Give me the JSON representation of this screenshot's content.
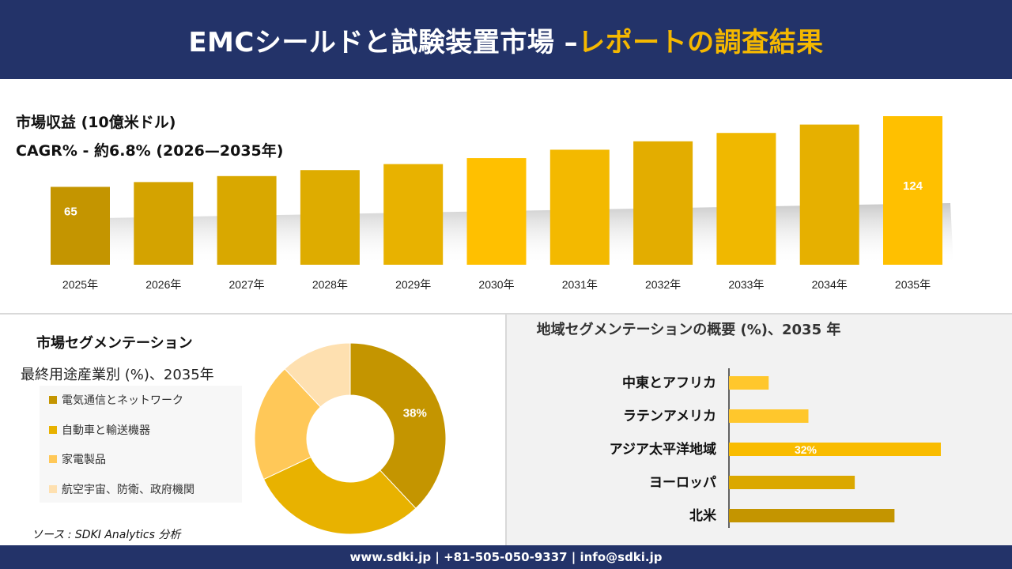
{
  "header": {
    "title_main": "EMCシールドと試験装置市場 –",
    "title_accent": "レポートの調査結果"
  },
  "revenue": {
    "label_line1": "市場収益 (10億米ドル)",
    "label_line2": "CAGR% - 約6.8% (2026—2035年)"
  },
  "chart_data": [
    {
      "type": "bar",
      "categories": [
        "2025年",
        "2026年",
        "2027年",
        "2028年",
        "2029年",
        "2030年",
        "2031年",
        "2032年",
        "2033年",
        "2034年",
        "2035年"
      ],
      "values": [
        65,
        69,
        74,
        79,
        84,
        89,
        96,
        103,
        110,
        117,
        124
      ],
      "data_labels": [
        "65",
        "",
        "",
        "",
        "",
        "",
        "",
        "",
        "",
        "",
        "124"
      ],
      "bar_colors": [
        "#c49500",
        "#d4a300",
        "#d9a800",
        "#deac00",
        "#e8b200",
        "#ffc000",
        "#f3b900",
        "#e3ad00",
        "#f0b800",
        "#e6b000",
        "#ffc000"
      ],
      "ylim": [
        0,
        130
      ],
      "grid": false
    },
    {
      "type": "pie",
      "title": "市場セグメンテーション",
      "subtitle": "最終用途産業別 (%)、2035年",
      "categories": [
        "電気通信とネットワーク",
        "自動車と輸送機器",
        "家電製品",
        "航空宇宙、防衛、政府機関"
      ],
      "values": [
        38,
        30,
        20,
        12
      ],
      "colors": [
        "#c49500",
        "#e8b200",
        "#ffc858",
        "#fee0b0"
      ],
      "data_labels": [
        "38%",
        "",
        "",
        ""
      ],
      "donut": true
    },
    {
      "type": "bar",
      "orientation": "horizontal",
      "title": "地域セグメンテーションの概要 (%)、2035 年",
      "categories": [
        "中東とアフリカ",
        "ラテンアメリカ",
        "アジア太平洋地域",
        "ヨーロッパ",
        "北米"
      ],
      "values": [
        6,
        12,
        32,
        19,
        25
      ],
      "colors": [
        "#ffc72c",
        "#ffc72c",
        "#f9bc00",
        "#dba800",
        "#c49500"
      ],
      "data_labels": [
        "",
        "",
        "32%",
        "",
        ""
      ],
      "xlim": [
        0,
        32
      ]
    }
  ],
  "source": "ソース : SDKI Analytics 分析",
  "footer": "www.sdki.jp | +81-505-050-9337 | info@sdki.jp"
}
